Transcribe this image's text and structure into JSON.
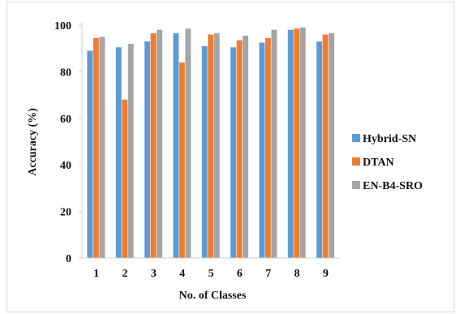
{
  "chart_data": {
    "type": "bar",
    "title": "",
    "xlabel": "No. of Classes",
    "ylabel": "Accuracy (%)",
    "ylim": [
      0,
      100
    ],
    "yticks": [
      0,
      20,
      40,
      60,
      80,
      100
    ],
    "grid": false,
    "legend_position": "right",
    "categories": [
      "1",
      "2",
      "3",
      "4",
      "5",
      "6",
      "7",
      "8",
      "9"
    ],
    "series": [
      {
        "name": "Hybrid-SN",
        "color": "#5b9bd5",
        "values": [
          89,
          90.5,
          93,
          96.5,
          91,
          90.5,
          92.5,
          98,
          93
        ]
      },
      {
        "name": "DTAN",
        "color": "#ed7d31",
        "values": [
          94.5,
          68,
          96.5,
          84,
          96,
          93.5,
          94.5,
          98.5,
          96
        ]
      },
      {
        "name": "EN-B4-SRO",
        "color": "#a5a5a5",
        "values": [
          95,
          92,
          98,
          98.5,
          96.5,
          95.5,
          98,
          99,
          96.5
        ]
      }
    ]
  }
}
